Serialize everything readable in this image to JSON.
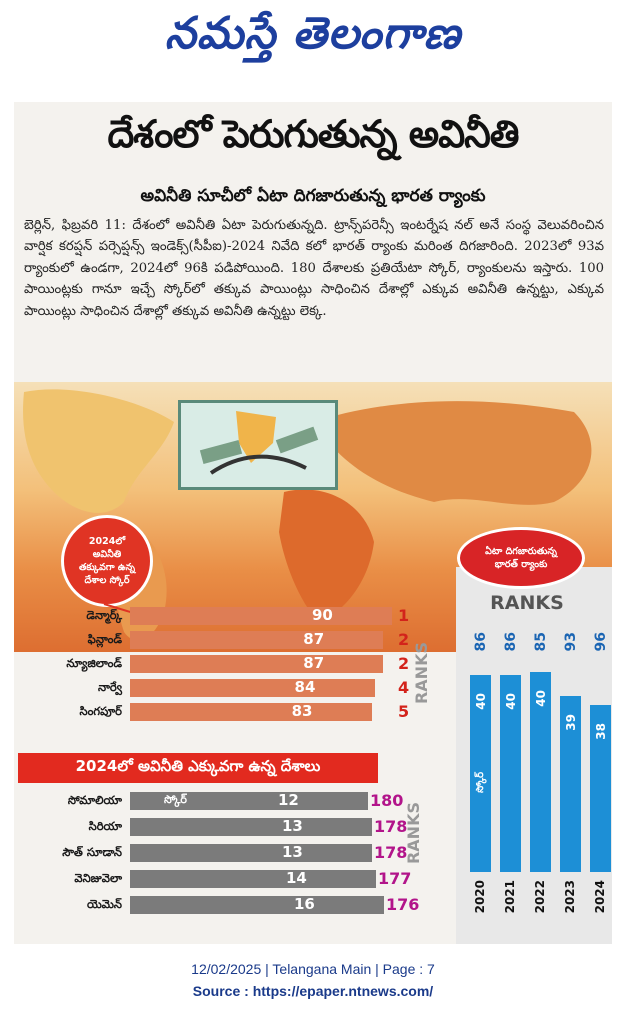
{
  "masthead": "నమస్తే తెలంగాణ",
  "article": {
    "headline": "దేశంలో పెరుగుతున్న అవినీతి",
    "subhead": "అవినీతి సూచీలో ఏటా దిగజారుతున్న భారత ర్యాంకు",
    "body": "బెర్లిన్, ఫిబ్రవరి 11: దేశంలో అవినీతి ఏటా పెరుగుతున్నది. ట్రాన్స్‌పరెన్సీ ఇంటర్నేష నల్ అనే సంస్థ వెలువరించిన వార్షిక కరప్షన్ పర్సెప్షన్స్ ఇండెక్స్(సీపీఐ)-2024 నివేది కలో భారత్ ర్యాంకు మరింత దిగజారింది. 2023లో 93వ ర్యాంకులో ఉండగా, 2024లో 96కి పడిపోయింది. 180 దేశాలకు ప్రతియేటా స్కోర్, ర్యాంకులను ఇస్తారు. 100 పాయింట్లకు గానూ ఇచ్చే స్కోర్‌లో తక్కువ పాయింట్లు సాధించిన దేశాల్లో ఎక్కువ అవినీతి ఉన్నట్టు, ఎక్కువ పాయింట్లు సాధించిన దేశాల్లో తక్కువ అవినీతి ఉన్నట్టు లెక్క."
  },
  "callout_least": [
    "2024లో",
    "అవినీతి",
    "తక్కువగా ఉన్న",
    "దేశాల స్కోర్"
  ],
  "callout_india": [
    "ఏటా దిగజారుతున్న",
    "భారత్ ర్యాంకు"
  ],
  "ranks_title": "RANKS",
  "ranks_side_label": "RANKS",
  "least_corrupt": [
    {
      "country": "డెన్మార్క్",
      "score": 90,
      "rank": 1
    },
    {
      "country": "ఫిన్లాండ్",
      "score": 87,
      "rank": 2
    },
    {
      "country": "న్యూజిలాండ్",
      "score": 87,
      "rank": 2
    },
    {
      "country": "నార్వే",
      "score": 84,
      "rank": 4
    },
    {
      "country": "సింగపూర్",
      "score": 83,
      "rank": 5
    }
  ],
  "most_corrupt_banner": "2024లో అవినీతి ఎక్కువగా ఉన్న దేశాలు",
  "score_label": "స్కోర్",
  "most_corrupt": [
    {
      "country": "సోమాలియా",
      "score": 12,
      "rank": 180
    },
    {
      "country": "సిరియా",
      "score": 13,
      "rank": 178
    },
    {
      "country": "సౌత్ సూడాన్",
      "score": 13,
      "rank": 178
    },
    {
      "country": "వెనిజువెలా",
      "score": 14,
      "rank": 177
    },
    {
      "country": "యెమెన్",
      "score": 16,
      "rank": 176
    }
  ],
  "india_score_label": "స్కోర్",
  "india_trend": [
    {
      "year": "2020",
      "rank": 86,
      "score": 40
    },
    {
      "year": "2021",
      "rank": 86,
      "score": 40
    },
    {
      "year": "2022",
      "rank": 85,
      "score": 40
    },
    {
      "year": "2023",
      "rank": 93,
      "score": 39
    },
    {
      "year": "2024",
      "rank": 96,
      "score": 38
    }
  ],
  "colors": {
    "bar_orange": "#de7d55",
    "bar_grey": "#7b7b7b",
    "rank_red": "#d3231b",
    "rank_magenta": "#b2148a",
    "india_blue": "#1d8fd6"
  },
  "footer": {
    "line1": "12/02/2025 | Telangana Main | Page : 7",
    "line2": "Source : https://epaper.ntnews.com/"
  }
}
